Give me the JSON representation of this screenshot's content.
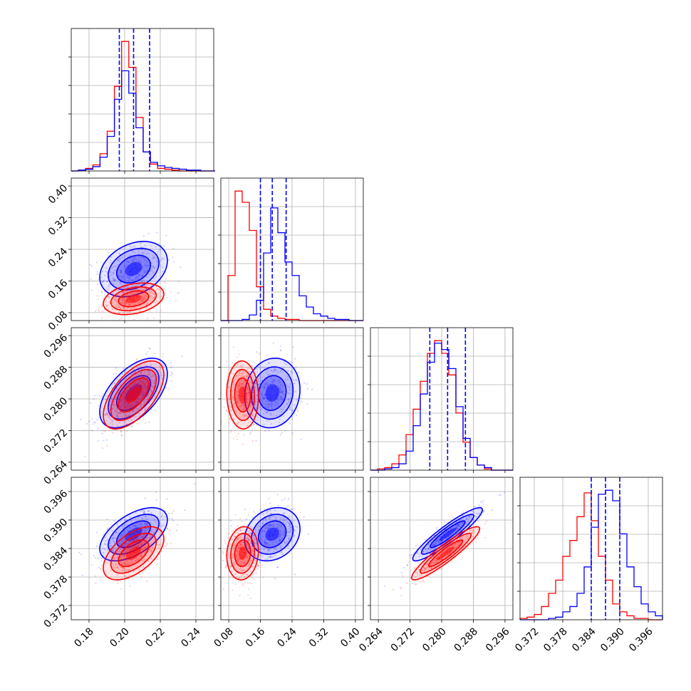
{
  "chart_data": {
    "type": "scatter",
    "title": "",
    "grid": true,
    "legend": "none",
    "colors": {
      "blue": "#0000ff",
      "red": "#ff0000"
    },
    "parameters": [
      {
        "range": [
          0.17,
          0.25
        ],
        "ticks": [
          "0.18",
          "0.20",
          "0.22",
          "0.24"
        ]
      },
      {
        "range": [
          0.06,
          0.42
        ],
        "ticks": [
          "0.08",
          "0.16",
          "0.24",
          "0.32",
          "0.40"
        ]
      },
      {
        "range": [
          0.262,
          0.298
        ],
        "ticks": [
          "0.264",
          "0.272",
          "0.280",
          "0.288",
          "0.296"
        ]
      },
      {
        "range": [
          0.369,
          0.399
        ],
        "ticks": [
          "0.372",
          "0.378",
          "0.384",
          "0.390",
          "0.396"
        ]
      }
    ],
    "series": [
      {
        "color": "blue",
        "mean": [
          0.205,
          0.19,
          0.2815,
          0.387
        ],
        "sd": [
          0.0095,
          0.035,
          0.0044,
          0.0028
        ],
        "quantiles": [
          [
            0.197,
            0.205,
            0.214
          ],
          [
            0.16,
            0.19,
            0.225
          ],
          [
            0.277,
            0.2815,
            0.286
          ],
          [
            0.384,
            0.387,
            0.39
          ]
        ],
        "corr": [
          [
            1,
            0.3,
            0.55,
            0.55
          ],
          [
            0.3,
            1,
            0.1,
            0.2
          ],
          [
            0.55,
            0.1,
            1,
            0.92
          ],
          [
            0.55,
            0.2,
            0.92,
            1
          ]
        ]
      },
      {
        "color": "red",
        "mean": [
          0.205,
          0.115,
          0.281,
          0.383
        ],
        "sd": [
          0.0085,
          0.02,
          0.0043,
          0.0028
        ],
        "corr": [
          [
            1,
            0.3,
            0.6,
            0.55
          ],
          [
            0.3,
            1,
            -0.05,
            0.1
          ],
          [
            0.6,
            -0.05,
            1,
            0.92
          ],
          [
            0.55,
            0.1,
            0.92,
            1
          ]
        ]
      }
    ],
    "histograms": [
      {
        "edges": [
          0.17,
          0.2508
        ],
        "blue": [
          0,
          1,
          2,
          5,
          16,
          40,
          83,
          116,
          90,
          50,
          22,
          10,
          6,
          4,
          3,
          2,
          1,
          1,
          0,
          0
        ],
        "red": [
          0,
          1,
          3,
          7,
          20,
          46,
          98,
          150,
          120,
          62,
          22,
          8,
          3,
          2,
          1,
          0,
          0,
          0,
          0,
          0
        ]
      },
      {
        "edges": [
          0.06,
          0.42
        ],
        "blue": [
          0,
          0,
          0,
          1,
          5,
          18,
          60,
          100,
          78,
          52,
          40,
          22,
          12,
          6,
          4,
          2,
          1,
          1,
          0,
          0
        ],
        "red": [
          0,
          40,
          115,
          105,
          80,
          30,
          10,
          4,
          2,
          1,
          1,
          0,
          0,
          0,
          0,
          0,
          0,
          0,
          0,
          0
        ]
      },
      {
        "edges": [
          0.262,
          0.298
        ],
        "blue": [
          0,
          0,
          1,
          2,
          5,
          15,
          35,
          60,
          85,
          100,
          95,
          80,
          50,
          25,
          10,
          4,
          2,
          0,
          0,
          0
        ],
        "red": [
          0,
          1,
          2,
          5,
          12,
          28,
          48,
          70,
          92,
          102,
          92,
          75,
          45,
          22,
          10,
          4,
          1,
          0,
          0,
          0
        ]
      },
      {
        "edges": [
          0.369,
          0.399
        ],
        "blue": [
          0,
          0,
          0,
          0,
          1,
          2,
          6,
          10,
          20,
          40,
          70,
          95,
          98,
          90,
          65,
          40,
          25,
          12,
          6,
          3
        ],
        "red": [
          1,
          2,
          4,
          10,
          20,
          30,
          48,
          60,
          78,
          96,
          75,
          48,
          30,
          12,
          6,
          3,
          1,
          1,
          0,
          0
        ]
      }
    ]
  }
}
